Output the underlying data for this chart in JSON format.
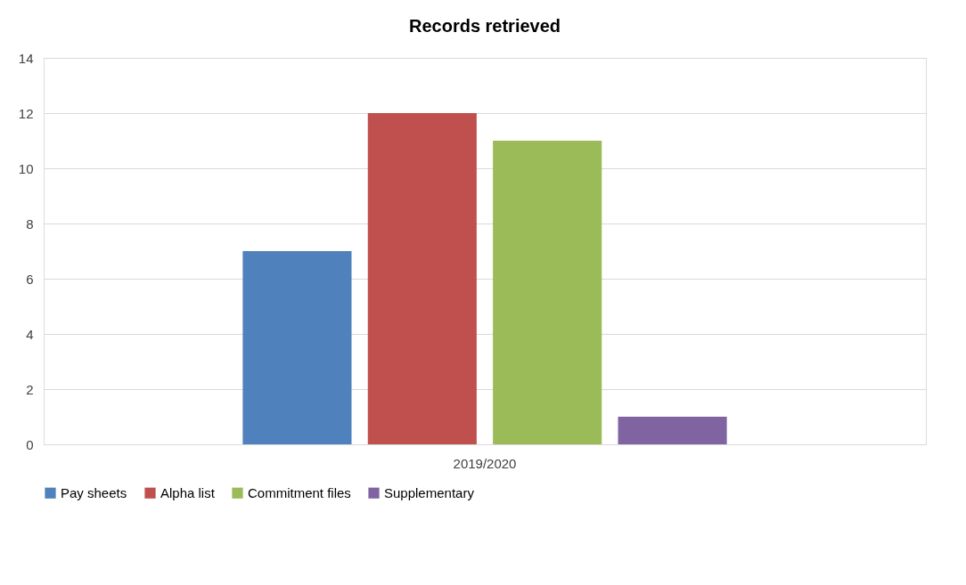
{
  "chart_data": {
    "type": "bar",
    "title": "Records retrieved",
    "categories": [
      "2019/2020"
    ],
    "series": [
      {
        "name": "Pay sheets",
        "color": "#4f81bd",
        "values": [
          7
        ]
      },
      {
        "name": "Alpha list",
        "color": "#c0504d",
        "values": [
          12
        ]
      },
      {
        "name": "Commitment files",
        "color": "#9bbb59",
        "values": [
          11
        ]
      },
      {
        "name": "Supplementary",
        "color": "#8064a2",
        "values": [
          1
        ]
      }
    ],
    "ylim": [
      0,
      14
    ],
    "yticks": [
      0,
      2,
      4,
      6,
      8,
      10,
      12,
      14
    ],
    "grid": "y",
    "legend": "bottom"
  }
}
